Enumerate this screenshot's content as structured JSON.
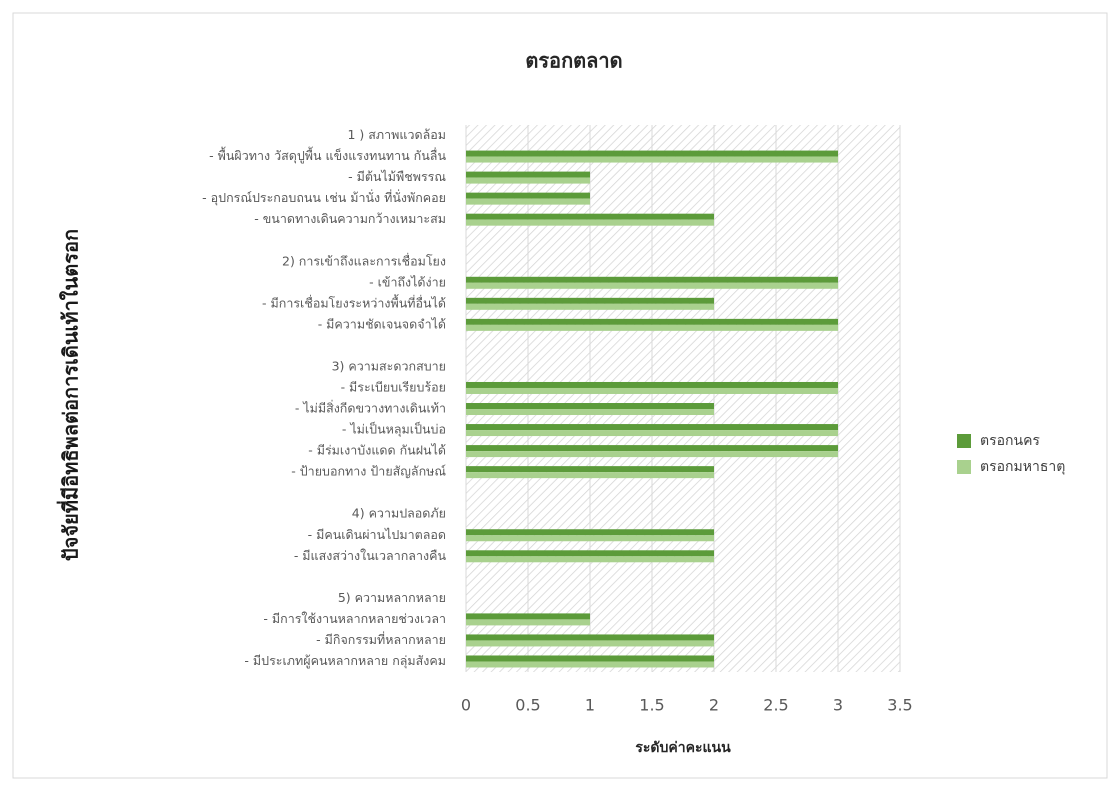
{
  "chart_data": {
    "type": "barh",
    "title": "ตรอกตลาด",
    "x_label": "ระดับค่าคะแนน",
    "y_label": "ปัจจัยที่มีอิทธิพลต่อการเดินเท้าในตรอก",
    "categories": [
      "1 ) สภาพแวดล้อม",
      "- พื้นผิวทาง วัสดุปูพื้น แข็งแรงทนทาน กันลื่น",
      "- มีต้นไม้พืชพรรณ",
      "- อุปกรณ์ประกอบถนน เช่น ม้านั่ง ที่นั่งพักคอย",
      "- ขนาดทางเดินความกว้างเหมาะสม",
      null,
      "2) การเข้าถึงและการเชื่อมโยง",
      "- เข้าถึงได้ง่าย",
      "- มีการเชื่อมโยงระหว่างพื้นที่อื่นได้",
      "- มีความชัดเจนจดจำได้",
      null,
      "3) ความสะดวกสบาย",
      "- มีระเบียบเรียบร้อย",
      "- ไม่มีสิ่งกีดขวางทางเดินเท้า",
      "- ไม่เป็นหลุมเป็นบ่อ",
      "- มีร่มเงาบังแดด กันฝนได้",
      "-  ป้ายบอกทาง ป้ายสัญลักษณ์",
      null,
      "4) ความปลอดภัย",
      "-  มีคนเดินผ่านไปมาตลอด",
      "- มีแสงสว่างในเวลากลางคืน",
      null,
      "5) ความหลากหลาย",
      "- มีการใช้งานหลากหลายช่วงเวลา",
      "- มีกิจกรรมที่หลากหลาย",
      "- มีประเภทผู้คนหลากหลาย กลุ่มสังคม"
    ],
    "series": [
      {
        "name": "ตรอกนคร",
        "color": "#5c9b3a",
        "values": [
          null,
          3,
          1,
          1,
          2,
          null,
          null,
          3,
          2,
          3,
          null,
          null,
          3,
          2,
          3,
          3,
          2,
          null,
          null,
          2,
          2,
          null,
          null,
          1,
          2,
          2
        ]
      },
      {
        "name": "ตรอกมหาธาตุ",
        "color": "#a9d18e",
        "values": [
          null,
          3,
          1,
          1,
          2,
          null,
          null,
          3,
          2,
          3,
          null,
          null,
          3,
          2,
          3,
          3,
          2,
          null,
          null,
          2,
          2,
          null,
          null,
          1,
          2,
          2
        ]
      }
    ],
    "xlim": [
      0,
      3.5
    ],
    "xticks": [
      0,
      0.5,
      1,
      1.5,
      2,
      2.5,
      3,
      3.5
    ],
    "grid": true,
    "legend": "right"
  }
}
